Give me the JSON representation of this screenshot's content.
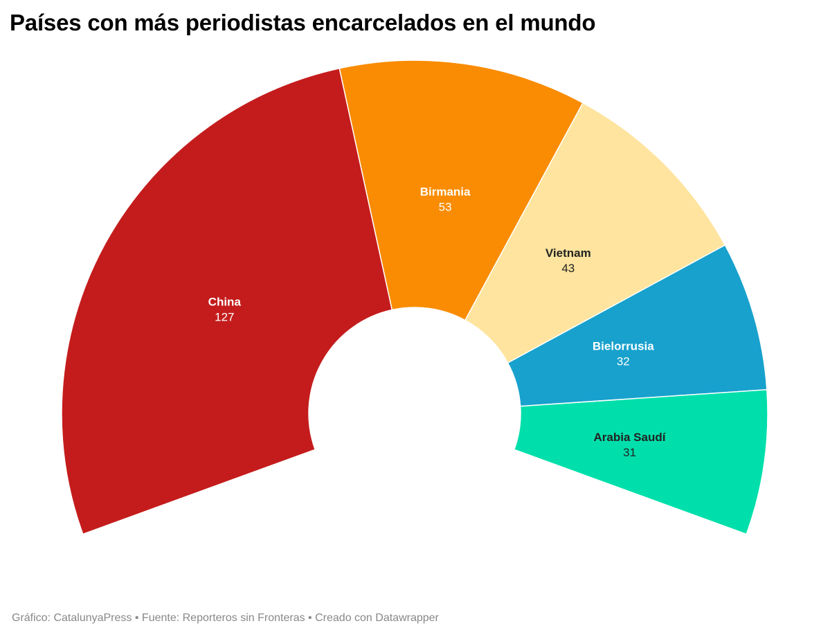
{
  "title": "Países con más periodistas encarcelados en el mundo",
  "footer": {
    "credit": "Gráfico: CatalunyaPress",
    "source": "Fuente: Reporteros sin Fronteras",
    "tool": "Creado con Datawrapper",
    "separator": "•"
  },
  "chart_data": {
    "type": "pie",
    "variant": "partial-donut",
    "categories": [
      "China",
      "Birmania",
      "Vietnam",
      "Bielorrusia",
      "Arabia Saudí"
    ],
    "values": [
      127,
      53,
      43,
      32,
      31
    ],
    "colors": [
      "#c41c1c",
      "#f98c03",
      "#fee49e",
      "#18a1cd",
      "#00dfab"
    ],
    "label_colors": [
      "#ffffff",
      "#ffffff",
      "#222222",
      "#ffffff",
      "#222222"
    ]
  }
}
